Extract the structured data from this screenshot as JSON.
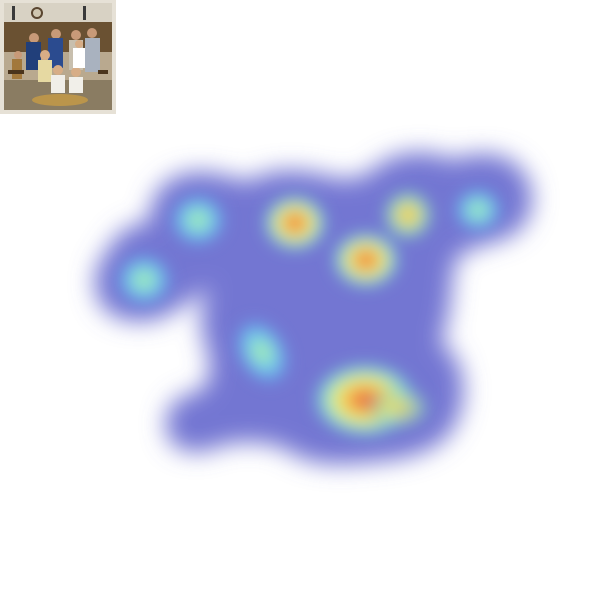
{
  "thumbnail": {
    "icon": "family-photo-thumbnail"
  },
  "heatmap": {
    "icon": "attention-heatmap",
    "colors": {
      "base": "#6b6fd0",
      "low": "#7fd7f0",
      "mid": "#e8f56a",
      "high": "#f4a24a",
      "peak": "#e0403a"
    }
  }
}
